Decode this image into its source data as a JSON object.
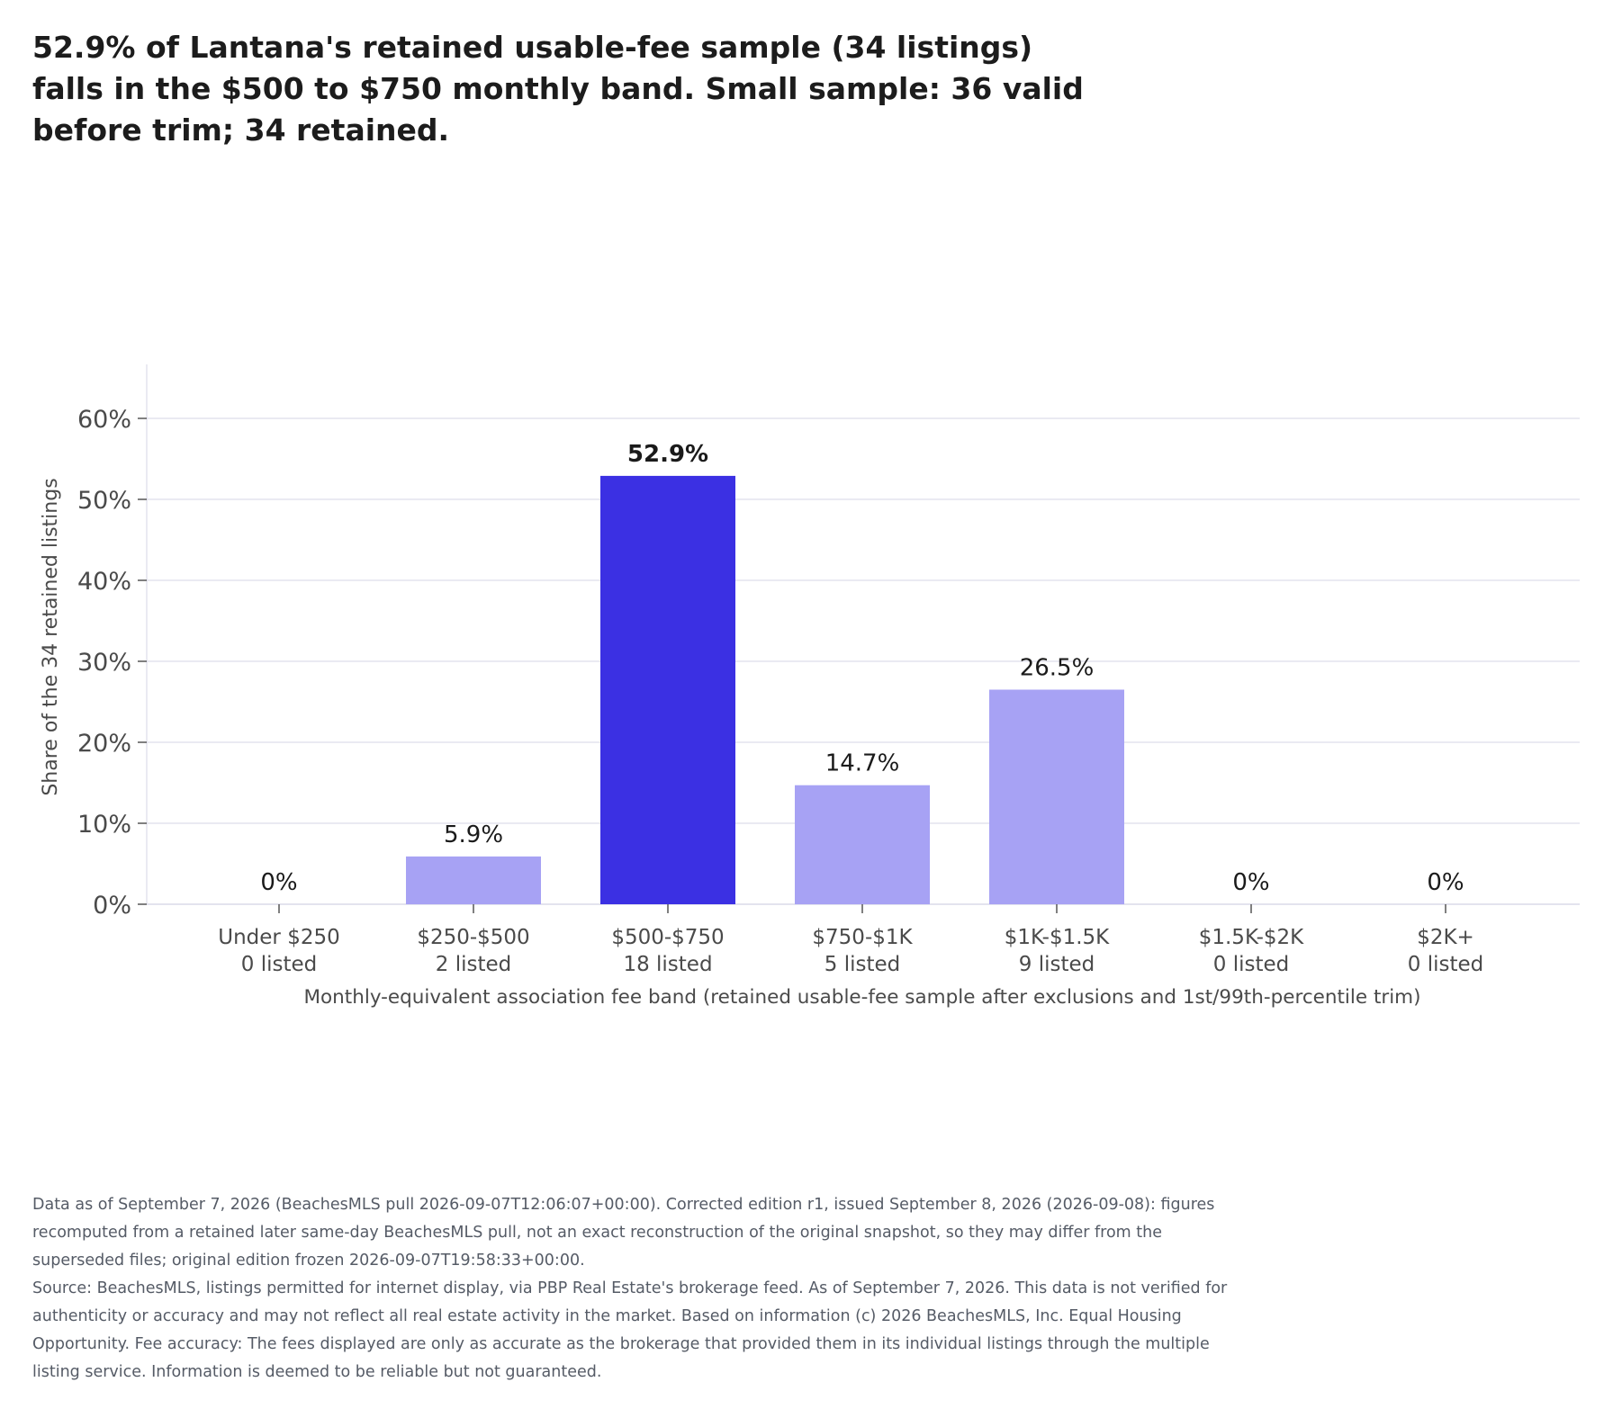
{
  "title": "52.9% of Lantana's retained usable-fee sample (34 listings) falls in the $500 to $750 monthly band. Small sample: 36 valid before trim; 34 retained.",
  "colors": {
    "highlight": "#3b30e3",
    "bar": "#a7a2f4",
    "grid": "#e3e3ee",
    "axis_text": "#4a4a4a",
    "label_text": "#1a1a1a"
  },
  "chart_data": {
    "type": "bar",
    "categories": [
      "Under $250",
      "$250-$500",
      "$500-$750",
      "$750-$1K",
      "$1K-$1.5K",
      "$1.5K-$2K",
      "$2K+"
    ],
    "category_counts": [
      "0 listed",
      "2 listed",
      "18 listed",
      "5 listed",
      "9 listed",
      "0 listed",
      "0 listed"
    ],
    "values": [
      0,
      5.9,
      52.9,
      14.7,
      26.5,
      0,
      0
    ],
    "value_labels": [
      "0%",
      "5.9%",
      "52.9%",
      "14.7%",
      "26.5%",
      "0%",
      "0%"
    ],
    "highlight_index": 2,
    "ylabel": "Share of the 34 retained listings",
    "xlabel": "Monthly-equivalent association fee band (retained usable-fee sample after exclusions and 1st/99th-percentile trim)",
    "ylim": [
      0,
      60
    ],
    "yticks": [
      0,
      10,
      20,
      30,
      40,
      50,
      60
    ],
    "ytick_labels": [
      "0%",
      "10%",
      "20%",
      "30%",
      "40%",
      "50%",
      "60%"
    ],
    "grid": true
  },
  "footnote": {
    "paragraph1": "Data as of September 7, 2026 (BeachesMLS pull 2026-09-07T12:06:07+00:00). Corrected edition r1, issued September 8, 2026 (2026-09-08): figures recomputed from a retained later same-day BeachesMLS pull, not an exact reconstruction of the original snapshot, so they may differ from the superseded files; original edition frozen 2026-09-07T19:58:33+00:00.",
    "paragraph2": "Source: BeachesMLS, listings permitted for internet display, via PBP Real Estate's brokerage feed. As of September 7, 2026. This data is not verified for authenticity or accuracy and may not reflect all real estate activity in the market. Based on information (c) 2026 BeachesMLS, Inc. Equal Housing Opportunity. Fee accuracy: The fees displayed are only as accurate as the brokerage that provided them in its individual listings through the multiple listing service. Information is deemed to be reliable but not guaranteed."
  }
}
